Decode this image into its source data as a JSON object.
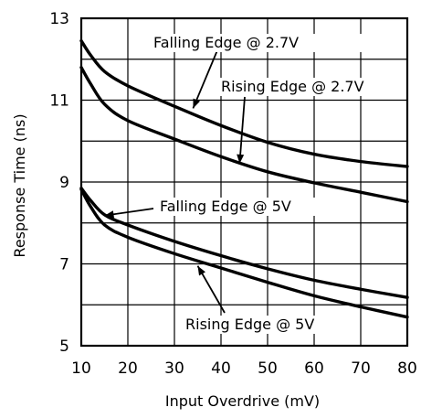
{
  "chart_data": {
    "type": "line",
    "xlabel": "Input Overdrive (mV)",
    "ylabel": "Response Time (ns)",
    "xlim": [
      10,
      80
    ],
    "ylim": [
      5,
      13
    ],
    "x_ticks": [
      "10",
      "20",
      "30",
      "40",
      "50",
      "60",
      "70",
      "80"
    ],
    "y_ticks": [
      "5",
      "7",
      "9",
      "11",
      "13"
    ],
    "grid": true,
    "series": [
      {
        "name": "Falling Edge @ 2.7V",
        "x": [
          10,
          12,
          15,
          20,
          30,
          40,
          50,
          60,
          70,
          80
        ],
        "y": [
          12.45,
          12.1,
          11.7,
          11.35,
          10.85,
          10.38,
          9.97,
          9.68,
          9.5,
          9.38
        ]
      },
      {
        "name": "Rising Edge @ 2.7V",
        "x": [
          10,
          12,
          15,
          20,
          30,
          40,
          50,
          60,
          70,
          80
        ],
        "y": [
          11.8,
          11.4,
          10.9,
          10.5,
          10.05,
          9.62,
          9.25,
          8.98,
          8.75,
          8.52
        ]
      },
      {
        "name": "Falling Edge @ 5V",
        "x": [
          10,
          12,
          15,
          20,
          30,
          40,
          50,
          60,
          70,
          80
        ],
        "y": [
          8.85,
          8.55,
          8.2,
          7.95,
          7.55,
          7.2,
          6.88,
          6.6,
          6.38,
          6.18
        ]
      },
      {
        "name": "Rising Edge @ 5V",
        "x": [
          10,
          12,
          15,
          20,
          30,
          40,
          50,
          60,
          70,
          80
        ],
        "y": [
          8.82,
          8.4,
          7.95,
          7.65,
          7.25,
          6.9,
          6.55,
          6.22,
          5.95,
          5.7
        ]
      }
    ],
    "annotations": [
      {
        "text": "Falling Edge @ 2.7V",
        "series": 0,
        "x": 34,
        "y": 10.8
      },
      {
        "text": "Rising Edge @ 2.7V",
        "series": 1,
        "x": 44,
        "y": 9.45
      },
      {
        "text": "Falling Edge @ 5V",
        "series": 2,
        "x": 15,
        "y": 8.18
      },
      {
        "text": "Rising Edge @ 5V",
        "series": 3,
        "x": 35,
        "y": 6.95
      }
    ]
  }
}
